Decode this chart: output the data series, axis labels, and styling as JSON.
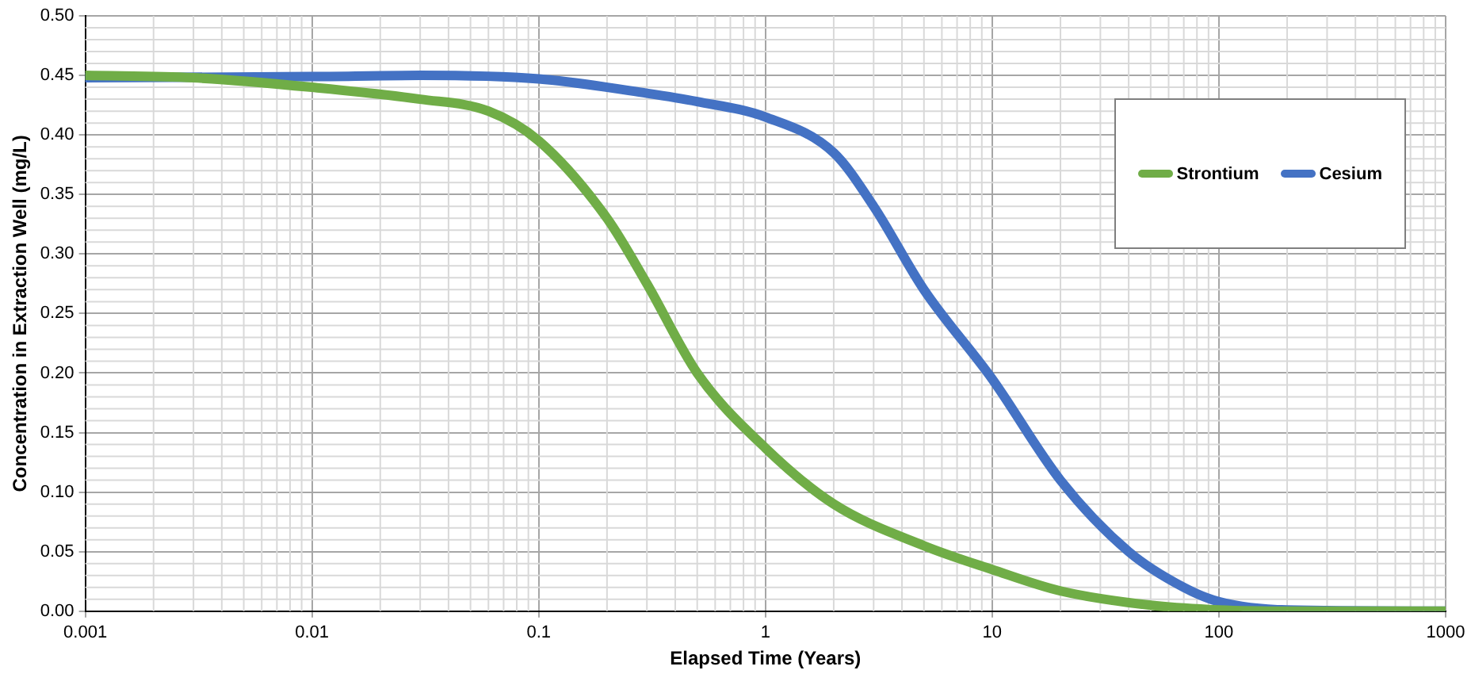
{
  "chart_data": {
    "type": "line",
    "xlabel": "Elapsed Time (Years)",
    "ylabel": "Concentration in Extraction Well (mg/L)",
    "log": "x",
    "grid": true,
    "legend": "top right",
    "marker": "none",
    "line_style": "solid",
    "xlim": [
      0.001,
      1000
    ],
    "xticks": [
      0.001,
      0.01,
      0.1,
      1,
      10,
      100,
      1000
    ],
    "ylim": [
      0,
      0.5
    ],
    "yticks": [
      {
        "value": 0,
        "label": "0.00"
      },
      {
        "value": 0.05,
        "label": "0.05"
      },
      {
        "value": 0.1,
        "label": "0.10"
      },
      {
        "value": 0.15,
        "label": "0.15"
      },
      {
        "value": 0.2,
        "label": "0.20"
      },
      {
        "value": 0.25,
        "label": "0.25"
      },
      {
        "value": 0.3,
        "label": "0.30"
      },
      {
        "value": 0.35,
        "label": "0.35"
      },
      {
        "value": 0.4,
        "label": "0.40"
      },
      {
        "value": 0.45,
        "label": "0.45"
      },
      {
        "value": 0.5,
        "label": "0.50"
      }
    ],
    "series": [
      {
        "name": "Strontium",
        "color": "#70ad47",
        "x": [
          0.001,
          0.003,
          0.01,
          0.03,
          0.06,
          0.1,
          0.2,
          0.3,
          0.5,
          1,
          2,
          5,
          10,
          20,
          50,
          100,
          200,
          1000
        ],
        "values": [
          0.45,
          0.448,
          0.44,
          0.43,
          0.42,
          0.395,
          0.33,
          0.275,
          0.2,
          0.137,
          0.09,
          0.055,
          0.035,
          0.017,
          0.005,
          0.001,
          0,
          0
        ]
      },
      {
        "name": "Cesium",
        "color": "#4472c4",
        "x": [
          0.001,
          0.01,
          0.03,
          0.1,
          0.3,
          0.5,
          1,
          2,
          3,
          5,
          10,
          20,
          40,
          70,
          100,
          200,
          1000
        ],
        "values": [
          0.448,
          0.449,
          0.45,
          0.447,
          0.435,
          0.428,
          0.415,
          0.385,
          0.34,
          0.27,
          0.195,
          0.11,
          0.05,
          0.02,
          0.008,
          0.001,
          0
        ]
      }
    ]
  }
}
